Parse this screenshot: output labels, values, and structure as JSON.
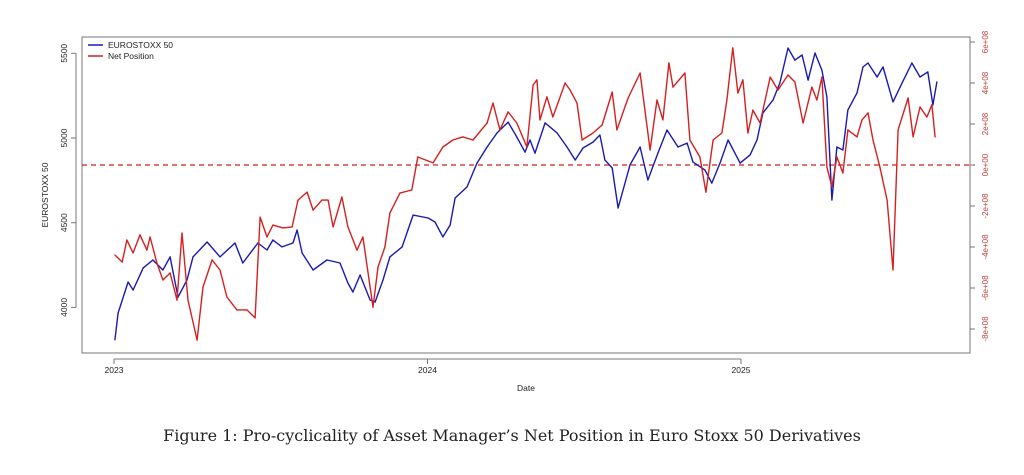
{
  "chart_data": {
    "type": "line",
    "title": "",
    "caption": "Figure 1: Pro-cyclicality of Asset Manager’s Net Position in Euro Stoxx 50 Derivatives",
    "xlabel": "Date",
    "ylabel": "EUROSTOXX 50",
    "ylabel_right": "",
    "x_ticks": [
      {
        "value": 2023,
        "label": "2023"
      },
      {
        "value": 2024,
        "label": "2024"
      },
      {
        "value": 2025,
        "label": "2025"
      }
    ],
    "y_ticks": [
      {
        "value": 4000,
        "label": "4000"
      },
      {
        "value": 4500,
        "label": "4500"
      },
      {
        "value": 5000,
        "label": "5000"
      },
      {
        "value": 5500,
        "label": "5500"
      }
    ],
    "y_right_ticks": [
      {
        "value": -800000000.0,
        "label": "-8e+08"
      },
      {
        "value": -600000000.0,
        "label": "-6e+08"
      },
      {
        "value": -400000000.0,
        "label": "-4e+08"
      },
      {
        "value": -200000000.0,
        "label": "-2e+08"
      },
      {
        "value": 0,
        "label": "0e+00"
      },
      {
        "value": 200000000.0,
        "label": "2e+08"
      },
      {
        "value": 400000000.0,
        "label": "4e+08"
      },
      {
        "value": 600000000.0,
        "label": "6e+08"
      }
    ],
    "legend": {
      "placement": "top-left",
      "entries": [
        "EUROSTOXX 50",
        "Net Position"
      ]
    },
    "reference_line": {
      "axis": "right",
      "value": 0,
      "style": "dashed",
      "color": "#cc2222"
    },
    "grid": false,
    "series": [
      {
        "name": "EUROSTOXX 50",
        "axis": "left",
        "color": "#1a1ab0",
        "points": [
          [
            2023.003,
            3808
          ],
          [
            2023.013,
            3967
          ],
          [
            2023.045,
            4150
          ],
          [
            2023.061,
            4103
          ],
          [
            2023.093,
            4233
          ],
          [
            2023.124,
            4280
          ],
          [
            2023.156,
            4221
          ],
          [
            2023.179,
            4298
          ],
          [
            2023.204,
            4061
          ],
          [
            2023.233,
            4162
          ],
          [
            2023.252,
            4298
          ],
          [
            2023.297,
            4386
          ],
          [
            2023.338,
            4298
          ],
          [
            2023.386,
            4380
          ],
          [
            2023.411,
            4262
          ],
          [
            2023.459,
            4380
          ],
          [
            2023.488,
            4339
          ],
          [
            2023.507,
            4398
          ],
          [
            2023.536,
            4357
          ],
          [
            2023.571,
            4380
          ],
          [
            2023.584,
            4457
          ],
          [
            2023.6,
            4321
          ],
          [
            2023.635,
            4221
          ],
          [
            2023.679,
            4280
          ],
          [
            2023.721,
            4262
          ],
          [
            2023.746,
            4144
          ],
          [
            2023.762,
            4091
          ],
          [
            2023.785,
            4191
          ],
          [
            2023.817,
            4044
          ],
          [
            2023.833,
            4032
          ],
          [
            2023.858,
            4162
          ],
          [
            2023.88,
            4298
          ],
          [
            2023.919,
            4357
          ],
          [
            2023.954,
            4545
          ],
          [
            2024.002,
            4528
          ],
          [
            2024.024,
            4504
          ],
          [
            2024.049,
            4416
          ],
          [
            2024.072,
            4486
          ],
          [
            2024.088,
            4646
          ],
          [
            2024.126,
            4711
          ],
          [
            2024.158,
            4852
          ],
          [
            2024.19,
            4947
          ],
          [
            2024.222,
            5030
          ],
          [
            2024.257,
            5094
          ],
          [
            2024.285,
            5006
          ],
          [
            2024.311,
            4917
          ],
          [
            2024.327,
            4988
          ],
          [
            2024.343,
            4911
          ],
          [
            2024.375,
            5089
          ],
          [
            2024.413,
            5030
          ],
          [
            2024.445,
            4947
          ],
          [
            2024.471,
            4870
          ],
          [
            2024.496,
            4941
          ],
          [
            2024.528,
            4976
          ],
          [
            2024.55,
            5018
          ],
          [
            2024.566,
            4870
          ],
          [
            2024.589,
            4823
          ],
          [
            2024.608,
            4587
          ],
          [
            2024.646,
            4841
          ],
          [
            2024.678,
            4947
          ],
          [
            2024.703,
            4752
          ],
          [
            2024.735,
            4911
          ],
          [
            2024.764,
            5047
          ],
          [
            2024.799,
            4947
          ],
          [
            2024.828,
            4970
          ],
          [
            2024.847,
            4858
          ],
          [
            2024.885,
            4811
          ],
          [
            2024.907,
            4734
          ],
          [
            2024.933,
            4852
          ],
          [
            2024.959,
            4988
          ],
          [
            2024.997,
            4852
          ],
          [
            2025.029,
            4900
          ],
          [
            2025.051,
            4988
          ],
          [
            2025.07,
            5148
          ],
          [
            2025.102,
            5224
          ],
          [
            2025.124,
            5325
          ],
          [
            2025.15,
            5531
          ],
          [
            2025.172,
            5460
          ],
          [
            2025.195,
            5490
          ],
          [
            2025.214,
            5342
          ],
          [
            2025.236,
            5502
          ],
          [
            2025.258,
            5401
          ],
          [
            2025.274,
            5242
          ],
          [
            2025.29,
            4634
          ],
          [
            2025.306,
            4947
          ],
          [
            2025.325,
            4929
          ],
          [
            2025.341,
            5165
          ],
          [
            2025.37,
            5266
          ],
          [
            2025.389,
            5419
          ],
          [
            2025.405,
            5443
          ],
          [
            2025.434,
            5360
          ],
          [
            2025.453,
            5419
          ],
          [
            2025.485,
            5213
          ],
          [
            2025.514,
            5325
          ],
          [
            2025.545,
            5443
          ],
          [
            2025.571,
            5360
          ],
          [
            2025.596,
            5390
          ],
          [
            2025.612,
            5195
          ],
          [
            2025.625,
            5331
          ]
        ]
      },
      {
        "name": "Net Position",
        "axis": "right",
        "color": "#d42020",
        "points": [
          [
            2023.003,
            -439000000.0
          ],
          [
            2023.026,
            -473000000.0
          ],
          [
            2023.041,
            -366000000.0
          ],
          [
            2023.061,
            -429000000.0
          ],
          [
            2023.083,
            -341000000.0
          ],
          [
            2023.105,
            -415000000.0
          ],
          [
            2023.115,
            -351000000.0
          ],
          [
            2023.137,
            -478000000.0
          ],
          [
            2023.156,
            -561000000.0
          ],
          [
            2023.179,
            -527000000.0
          ],
          [
            2023.201,
            -659000000.0
          ],
          [
            2023.217,
            -332000000.0
          ],
          [
            2023.236,
            -659000000.0
          ],
          [
            2023.265,
            -854000000.0
          ],
          [
            2023.284,
            -595000000.0
          ],
          [
            2023.313,
            -463000000.0
          ],
          [
            2023.338,
            -512000000.0
          ],
          [
            2023.36,
            -644000000.0
          ],
          [
            2023.392,
            -707000000.0
          ],
          [
            2023.424,
            -707000000.0
          ],
          [
            2023.45,
            -746000000.0
          ],
          [
            2023.466,
            -254000000.0
          ],
          [
            2023.488,
            -351000000.0
          ],
          [
            2023.507,
            -293000000.0
          ],
          [
            2023.539,
            -307000000.0
          ],
          [
            2023.568,
            -302000000.0
          ],
          [
            2023.587,
            -171000000.0
          ],
          [
            2023.616,
            -132000000.0
          ],
          [
            2023.635,
            -220000000.0
          ],
          [
            2023.663,
            -171000000.0
          ],
          [
            2023.683,
            -171000000.0
          ],
          [
            2023.699,
            -302000000.0
          ],
          [
            2023.727,
            -156000000.0
          ],
          [
            2023.746,
            -302000000.0
          ],
          [
            2023.775,
            -415000000.0
          ],
          [
            2023.794,
            -351000000.0
          ],
          [
            2023.826,
            -693000000.0
          ],
          [
            2023.842,
            -498000000.0
          ],
          [
            2023.864,
            -400000000.0
          ],
          [
            2023.88,
            -234000000.0
          ],
          [
            2023.912,
            -137000000.0
          ],
          [
            2023.95,
            -122000000.0
          ],
          [
            2023.969,
            39000000.0
          ],
          [
            2024.018,
            10000000.0
          ],
          [
            2024.049,
            88000000.0
          ],
          [
            2024.081,
            122000000.0
          ],
          [
            2024.113,
            137000000.0
          ],
          [
            2024.145,
            122000000.0
          ],
          [
            2024.19,
            205000000.0
          ],
          [
            2024.209,
            302000000.0
          ],
          [
            2024.231,
            171000000.0
          ],
          [
            2024.257,
            259000000.0
          ],
          [
            2024.285,
            205000000.0
          ],
          [
            2024.317,
            88000000.0
          ],
          [
            2024.337,
            390000000.0
          ],
          [
            2024.349,
            415000000.0
          ],
          [
            2024.359,
            220000000.0
          ],
          [
            2024.381,
            332000000.0
          ],
          [
            2024.4,
            234000000.0
          ],
          [
            2024.439,
            400000000.0
          ],
          [
            2024.455,
            366000000.0
          ],
          [
            2024.477,
            302000000.0
          ],
          [
            2024.493,
            122000000.0
          ],
          [
            2024.528,
            156000000.0
          ],
          [
            2024.557,
            195000000.0
          ],
          [
            2024.589,
            356000000.0
          ],
          [
            2024.604,
            171000000.0
          ],
          [
            2024.64,
            327000000.0
          ],
          [
            2024.678,
            449000000.0
          ],
          [
            2024.71,
            73000000.0
          ],
          [
            2024.732,
            317000000.0
          ],
          [
            2024.751,
            220000000.0
          ],
          [
            2024.77,
            498000000.0
          ],
          [
            2024.783,
            380000000.0
          ],
          [
            2024.821,
            449000000.0
          ],
          [
            2024.837,
            122000000.0
          ],
          [
            2024.869,
            39000000.0
          ],
          [
            2024.888,
            -132000000.0
          ],
          [
            2024.911,
            122000000.0
          ],
          [
            2024.939,
            156000000.0
          ],
          [
            2024.955,
            317000000.0
          ],
          [
            2024.974,
            571000000.0
          ],
          [
            2024.99,
            351000000.0
          ],
          [
            2025.006,
            415000000.0
          ],
          [
            2025.022,
            156000000.0
          ],
          [
            2025.038,
            268000000.0
          ],
          [
            2025.061,
            205000000.0
          ],
          [
            2025.093,
            429000000.0
          ],
          [
            2025.118,
            366000000.0
          ],
          [
            2025.15,
            439000000.0
          ],
          [
            2025.172,
            405000000.0
          ],
          [
            2025.198,
            205000000.0
          ],
          [
            2025.226,
            380000000.0
          ],
          [
            2025.242,
            317000000.0
          ],
          [
            2025.258,
            429000000.0
          ],
          [
            2025.274,
            -10000000.0
          ],
          [
            2025.29,
            -107000000.0
          ],
          [
            2025.306,
            39000000.0
          ],
          [
            2025.325,
            -39000000.0
          ],
          [
            2025.341,
            171000000.0
          ],
          [
            2025.37,
            137000000.0
          ],
          [
            2025.386,
            220000000.0
          ],
          [
            2025.405,
            254000000.0
          ],
          [
            2025.421,
            122000000.0
          ],
          [
            2025.443,
            -10000000.0
          ],
          [
            2025.466,
            -171000000.0
          ],
          [
            2025.485,
            -512000000.0
          ],
          [
            2025.501,
            171000000.0
          ],
          [
            2025.533,
            327000000.0
          ],
          [
            2025.549,
            137000000.0
          ],
          [
            2025.571,
            283000000.0
          ],
          [
            2025.593,
            234000000.0
          ],
          [
            2025.609,
            293000000.0
          ],
          [
            2025.619,
            137000000.0
          ]
        ]
      }
    ]
  }
}
